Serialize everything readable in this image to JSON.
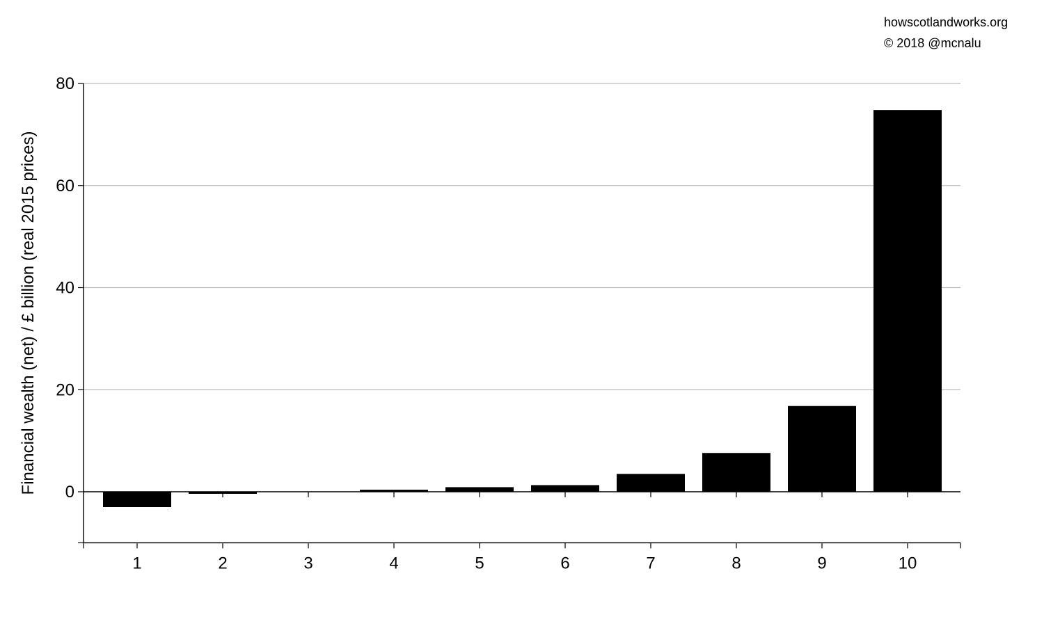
{
  "credits": {
    "site": "howscotlandworks.org",
    "copyright": "© 2018  @mcnalu"
  },
  "chart_data": {
    "type": "bar",
    "title": "",
    "xlabel": "",
    "ylabel": "Financial wealth (net) / £ billion (real 2015 prices)",
    "categories": [
      "1",
      "2",
      "3",
      "4",
      "5",
      "6",
      "7",
      "8",
      "9",
      "10"
    ],
    "values": [
      -3.0,
      -0.4,
      0.0,
      0.4,
      0.9,
      1.3,
      3.5,
      7.6,
      16.8,
      74.8
    ],
    "ylim": [
      -10,
      80
    ],
    "yticks": [
      0,
      20,
      40,
      60,
      80
    ],
    "ytick_labels": [
      "0",
      "20",
      "40",
      "60",
      "80"
    ],
    "grid": true,
    "colors": {
      "bar": "#000000",
      "grid": "#bbbbbb",
      "axis": "#000000"
    }
  }
}
